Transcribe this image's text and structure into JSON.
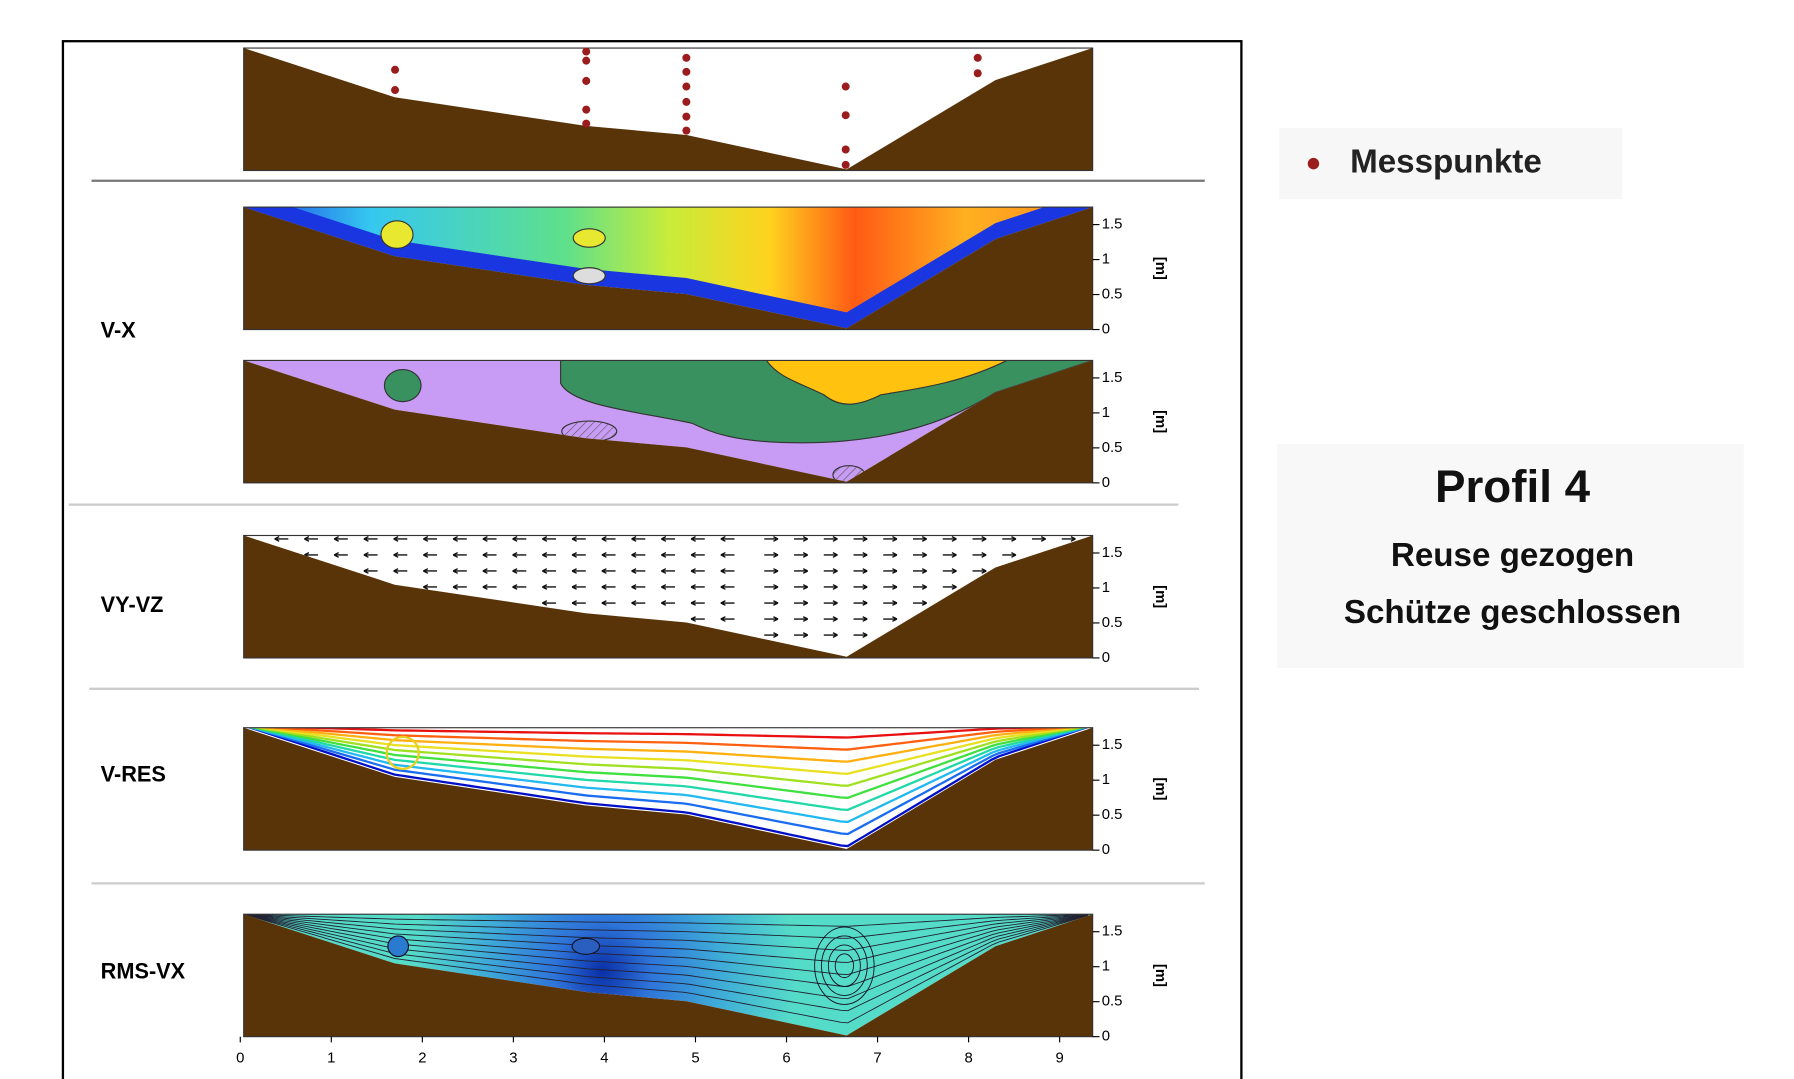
{
  "chart_data": {
    "type": "profile",
    "panel_labels": [
      "V-X",
      "VY-VZ",
      "V-RES",
      "RMS-VX"
    ],
    "y_label": "[m]",
    "ylim": [
      0,
      1.75
    ],
    "yticks": [
      0,
      0.5,
      1,
      1.5
    ],
    "xlim": [
      0,
      9.35
    ],
    "xticks": [
      0,
      1,
      2,
      3,
      4,
      5,
      6,
      7,
      8,
      9
    ],
    "legend": "Messpunkte",
    "point_color": "#9b1c1c",
    "points": {
      "x": [
        1.7,
        1.7,
        3.8,
        3.8,
        3.8,
        3.8,
        3.8,
        4.9,
        4.9,
        4.9,
        4.9,
        4.9,
        4.9,
        6.65,
        6.65,
        6.65,
        6.65,
        8.1,
        8.1
      ],
      "y": [
        1.44,
        1.15,
        1.7,
        1.57,
        1.28,
        0.87,
        0.67,
        1.61,
        1.41,
        1.2,
        0.98,
        0.77,
        0.57,
        1.2,
        0.79,
        0.3,
        0.08,
        1.61,
        1.39
      ]
    },
    "title": "Profil 4",
    "subtitle": [
      "Reuse gezogen",
      "Schütze geschlossen"
    ]
  }
}
